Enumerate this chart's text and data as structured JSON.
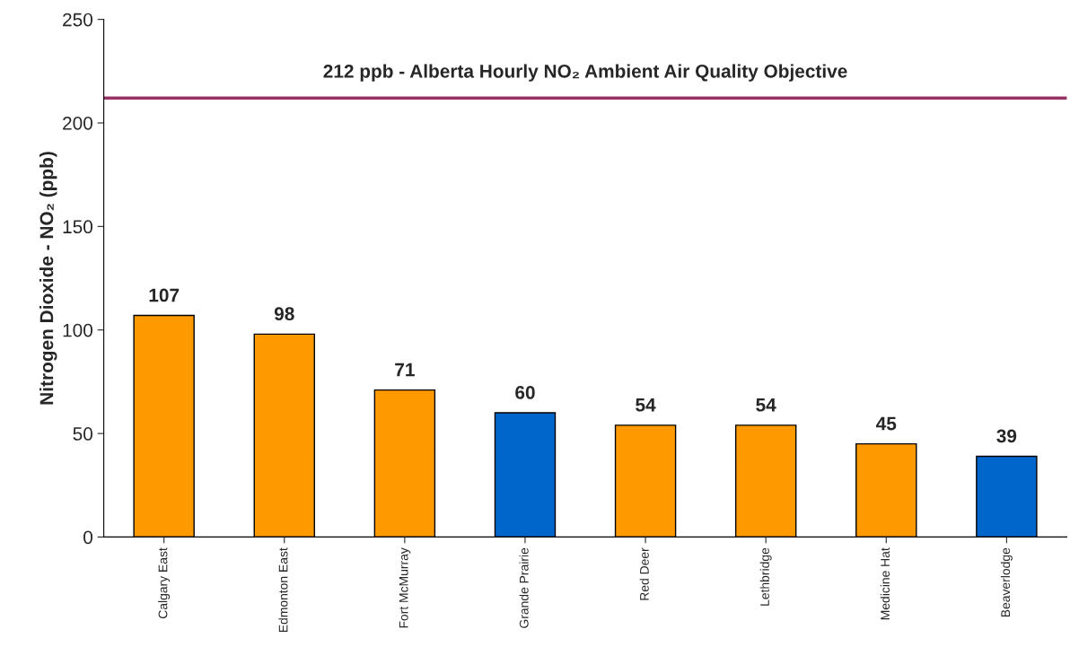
{
  "chart_data": {
    "type": "bar",
    "ylabel": "Nitrogen Dioxide - NO₂ (ppb)",
    "categories": [
      "Calgary East",
      "Edmonton East",
      "Fort McMurray",
      "Grande Prairie",
      "Red Deer",
      "Lethbridge",
      "Medicine Hat",
      "Beaverlodge"
    ],
    "values": [
      107,
      98,
      71,
      60,
      54,
      54,
      45,
      39
    ],
    "colors": [
      "#ff9900",
      "#ff9900",
      "#ff9900",
      "#0066cc",
      "#ff9900",
      "#ff9900",
      "#ff9900",
      "#0066cc"
    ],
    "ylim": [
      0,
      250
    ],
    "yticks": [
      0,
      50,
      100,
      150,
      200,
      250
    ],
    "ref_lines": [
      {
        "axis": "y",
        "value": 212,
        "label": "212 ppb - Alberta Hourly NO₂ Ambient Air Quality Objective",
        "color": "#993366"
      }
    ],
    "data_labels": true,
    "grid": false
  }
}
